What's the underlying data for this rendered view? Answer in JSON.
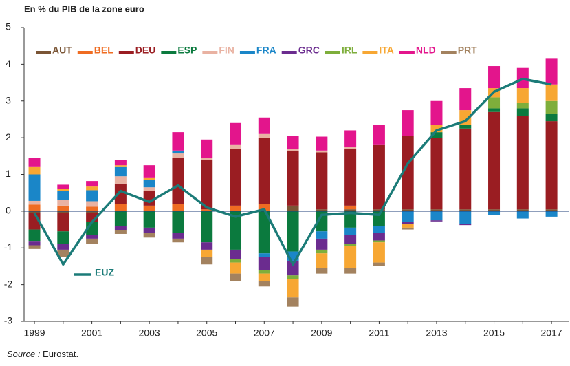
{
  "chart_data": {
    "type": "bar",
    "stacked": true,
    "title": "En % du PIB de la zone euro",
    "source": {
      "label": "Source :",
      "text": "Eurostat."
    },
    "x": [
      1999,
      2000,
      2001,
      2002,
      2003,
      2004,
      2005,
      2006,
      2007,
      2008,
      2009,
      2010,
      2011,
      2012,
      2013,
      2014,
      2015,
      2016,
      2017
    ],
    "xlim": [
      1998.64,
      2017.62
    ],
    "xticks": [
      1999,
      2001,
      2003,
      2005,
      2007,
      2009,
      2011,
      2013,
      2015,
      2017
    ],
    "ylim": [
      -3,
      5
    ],
    "yticks": [
      -3,
      -2,
      -1,
      0,
      1,
      2,
      3,
      4,
      5
    ],
    "series": [
      {
        "name": "AUT",
        "color": "#7a5535",
        "values": [
          -0.05,
          -0.05,
          -0.05,
          0,
          0,
          0,
          0,
          0,
          0,
          0.15,
          0.05,
          0.05,
          0.05,
          0.05,
          0.05,
          0.05,
          0.05,
          0.05,
          0.05
        ]
      },
      {
        "name": "BEL",
        "color": "#ef6c22",
        "values": [
          0.18,
          0.15,
          0.12,
          0.2,
          0.15,
          0.2,
          0.05,
          0.15,
          0.2,
          0,
          0,
          0.1,
          0,
          0,
          0,
          0,
          0,
          0,
          0
        ]
      },
      {
        "name": "DEU",
        "color": "#9a1d22",
        "values": [
          -0.45,
          -0.5,
          -0.25,
          0.55,
          0.4,
          1.25,
          1.35,
          1.55,
          1.8,
          1.5,
          1.55,
          1.55,
          1.75,
          2.0,
          1.95,
          2.2,
          2.65,
          2.55,
          2.4
        ]
      },
      {
        "name": "ESP",
        "color": "#0b7a3e",
        "values": [
          -0.33,
          -0.35,
          -0.35,
          -0.4,
          -0.45,
          -0.6,
          -0.85,
          -1.05,
          -1.15,
          -1.1,
          -0.55,
          -0.45,
          -0.4,
          0,
          0.15,
          0.1,
          0.1,
          0.2,
          0.2
        ]
      },
      {
        "name": "FIN",
        "color": "#e9b2a2",
        "values": [
          0.1,
          0.15,
          0.15,
          0.2,
          0.1,
          0.12,
          0.05,
          0.1,
          0.1,
          0.05,
          0.05,
          0.05,
          0,
          0,
          0,
          0,
          0,
          0,
          0
        ]
      },
      {
        "name": "FRA",
        "color": "#1a86c8",
        "values": [
          0.72,
          0.25,
          0.3,
          0.25,
          0.2,
          0.08,
          0,
          0,
          -0.1,
          -0.25,
          -0.2,
          -0.2,
          -0.2,
          -0.3,
          -0.25,
          -0.35,
          -0.1,
          -0.2,
          -0.15
        ]
      },
      {
        "name": "GRC",
        "color": "#6b2c8f",
        "values": [
          -0.1,
          -0.15,
          -0.1,
          -0.12,
          -0.15,
          -0.15,
          -0.2,
          -0.25,
          -0.35,
          -0.4,
          -0.3,
          -0.25,
          -0.2,
          -0.05,
          -0.03,
          -0.03,
          0,
          0,
          0
        ]
      },
      {
        "name": "IRL",
        "color": "#7eae3b",
        "values": [
          0,
          0,
          0,
          0,
          0,
          0,
          0,
          -0.1,
          -0.1,
          -0.1,
          -0.1,
          -0.05,
          -0.05,
          0,
          0,
          0,
          0.3,
          0.15,
          0.35
        ]
      },
      {
        "name": "ITA",
        "color": "#f7a733",
        "values": [
          0.2,
          0.05,
          0.1,
          0.05,
          0.05,
          0,
          -0.2,
          -0.3,
          -0.2,
          -0.5,
          -0.4,
          -0.6,
          -0.55,
          -0.1,
          0.2,
          0.4,
          0.25,
          0.4,
          0.45
        ]
      },
      {
        "name": "NLD",
        "color": "#e3158c",
        "values": [
          0.25,
          0.12,
          0.15,
          0.15,
          0.35,
          0.5,
          0.5,
          0.6,
          0.45,
          0.35,
          0.38,
          0.45,
          0.55,
          0.7,
          0.65,
          0.6,
          0.6,
          0.55,
          0.7
        ]
      },
      {
        "name": "PRT",
        "color": "#a3825f",
        "values": [
          -0.1,
          -0.2,
          -0.15,
          -0.1,
          -0.12,
          -0.1,
          -0.2,
          -0.2,
          -0.15,
          -0.25,
          -0.15,
          -0.15,
          -0.1,
          -0.05,
          0,
          0,
          0,
          0,
          0
        ]
      },
      {
        "name": "EUZ",
        "color": "#1b7b78",
        "type": "line",
        "values": [
          -0.05,
          -1.45,
          -0.3,
          0.55,
          0.25,
          0.7,
          0.1,
          -0.15,
          0.05,
          -1.45,
          -0.1,
          -0.05,
          -0.1,
          1.3,
          2.2,
          2.45,
          3.25,
          3.6,
          3.45
        ]
      }
    ]
  }
}
